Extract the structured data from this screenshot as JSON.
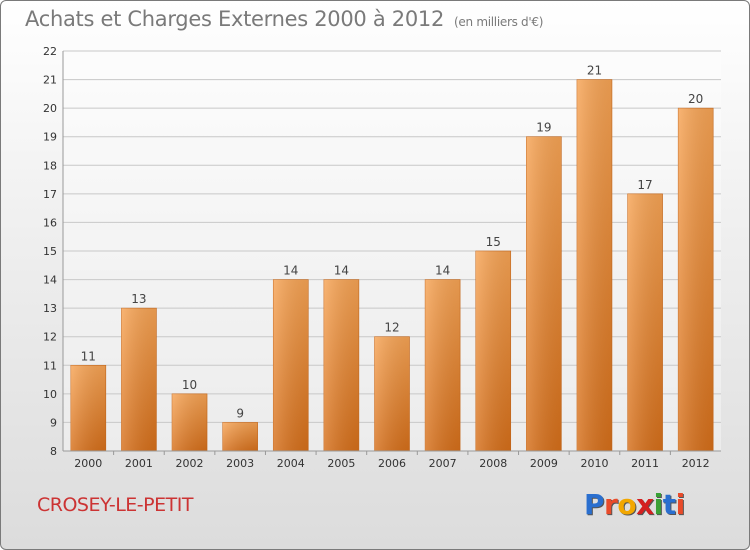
{
  "header": {
    "title": "Achats et Charges Externes 2000 à 2012",
    "subtitle": "(en milliers d'€)"
  },
  "footer": {
    "commune": "CROSEY-LE-PETIT",
    "logo": "Proxiti",
    "logo_letters": [
      {
        "ch": "P",
        "color": "#2a6fcf"
      },
      {
        "ch": "r",
        "color": "#e94b2a"
      },
      {
        "ch": "o",
        "color": "#f2a700"
      },
      {
        "ch": "x",
        "color": "#d42020"
      },
      {
        "ch": "i",
        "color": "#3aa036"
      },
      {
        "ch": "t",
        "color": "#2a6fcf"
      },
      {
        "ch": "i",
        "color": "#e94b2a"
      }
    ]
  },
  "chart_data": {
    "type": "bar",
    "categories": [
      "2000",
      "2001",
      "2002",
      "2003",
      "2004",
      "2005",
      "2006",
      "2007",
      "2008",
      "2009",
      "2010",
      "2011",
      "2012"
    ],
    "values": [
      11,
      13,
      10,
      9,
      14,
      14,
      12,
      14,
      15,
      19,
      21,
      17,
      20
    ],
    "title": "Achats et Charges Externes 2000 à 2012",
    "ylim": [
      8,
      22
    ],
    "yticks": [
      8,
      9,
      10,
      11,
      12,
      13,
      14,
      15,
      16,
      17,
      18,
      19,
      20,
      21,
      22
    ],
    "grid": true,
    "bar_color_top": "#f7a455",
    "bar_color_bottom": "#d66f1a",
    "value_labels": true
  }
}
